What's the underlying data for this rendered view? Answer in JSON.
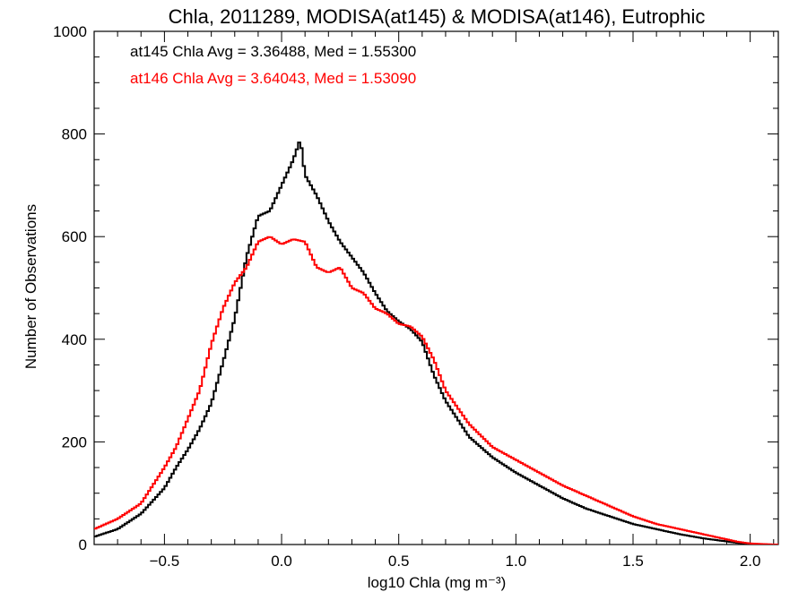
{
  "chart_data": {
    "type": "line",
    "title": "Chla, 2011289, MODISA(at145) & MODISA(at146), Eutrophic",
    "xlabel": "log10 Chla (mg m⁻³)",
    "ylabel": "Number of Observations",
    "xlim": [
      -0.8,
      2.12
    ],
    "ylim": [
      0,
      1000
    ],
    "x_ticks": [
      -0.5,
      0.0,
      0.5,
      1.0,
      1.5,
      2.0
    ],
    "x_tick_labels": [
      "−0.5",
      "0.0",
      "0.5",
      "1.0",
      "1.5",
      "2.0"
    ],
    "y_ticks": [
      0,
      200,
      400,
      600,
      800,
      1000
    ],
    "y_tick_labels": [
      "0",
      "200",
      "400",
      "600",
      "800",
      "1000"
    ],
    "grid": false,
    "annotations": [
      {
        "text": "at145 Chla Avg = 3.36488, Med = 1.55300",
        "color": "#000000"
      },
      {
        "text": "at146 Chla Avg = 3.64043, Med = 1.53090",
        "color": "#ff0000"
      }
    ],
    "series": [
      {
        "color": "#000000",
        "x": [
          -0.8,
          -0.7,
          -0.6,
          -0.5,
          -0.45,
          -0.4,
          -0.35,
          -0.3,
          -0.25,
          -0.2,
          -0.15,
          -0.1,
          -0.05,
          0.0,
          0.05,
          0.08,
          0.1,
          0.15,
          0.2,
          0.25,
          0.3,
          0.35,
          0.4,
          0.45,
          0.5,
          0.55,
          0.6,
          0.65,
          0.7,
          0.8,
          0.9,
          1.0,
          1.1,
          1.2,
          1.3,
          1.4,
          1.5,
          1.6,
          1.7,
          1.8,
          1.9,
          1.95,
          2.0,
          2.1
        ],
        "y": [
          15,
          30,
          60,
          110,
          150,
          185,
          225,
          275,
          355,
          440,
          560,
          640,
          650,
          700,
          750,
          790,
          720,
          680,
          630,
          590,
          560,
          530,
          490,
          455,
          435,
          420,
          395,
          330,
          280,
          210,
          170,
          140,
          115,
          90,
          70,
          55,
          40,
          30,
          20,
          12,
          6,
          3,
          1,
          0
        ]
      },
      {
        "color": "#ff0000",
        "x": [
          -0.8,
          -0.7,
          -0.6,
          -0.5,
          -0.45,
          -0.4,
          -0.35,
          -0.3,
          -0.25,
          -0.2,
          -0.15,
          -0.1,
          -0.05,
          0.0,
          0.05,
          0.1,
          0.15,
          0.2,
          0.25,
          0.3,
          0.35,
          0.4,
          0.45,
          0.5,
          0.55,
          0.6,
          0.65,
          0.7,
          0.8,
          0.9,
          1.0,
          1.1,
          1.2,
          1.3,
          1.4,
          1.5,
          1.6,
          1.7,
          1.8,
          1.9,
          1.95,
          2.0,
          2.1
        ],
        "y": [
          30,
          50,
          80,
          150,
          190,
          245,
          300,
          390,
          460,
          510,
          540,
          590,
          600,
          585,
          595,
          590,
          540,
          530,
          540,
          500,
          490,
          460,
          450,
          430,
          425,
          405,
          360,
          300,
          235,
          190,
          165,
          140,
          115,
          95,
          75,
          55,
          40,
          30,
          20,
          10,
          5,
          2,
          0
        ]
      }
    ]
  }
}
